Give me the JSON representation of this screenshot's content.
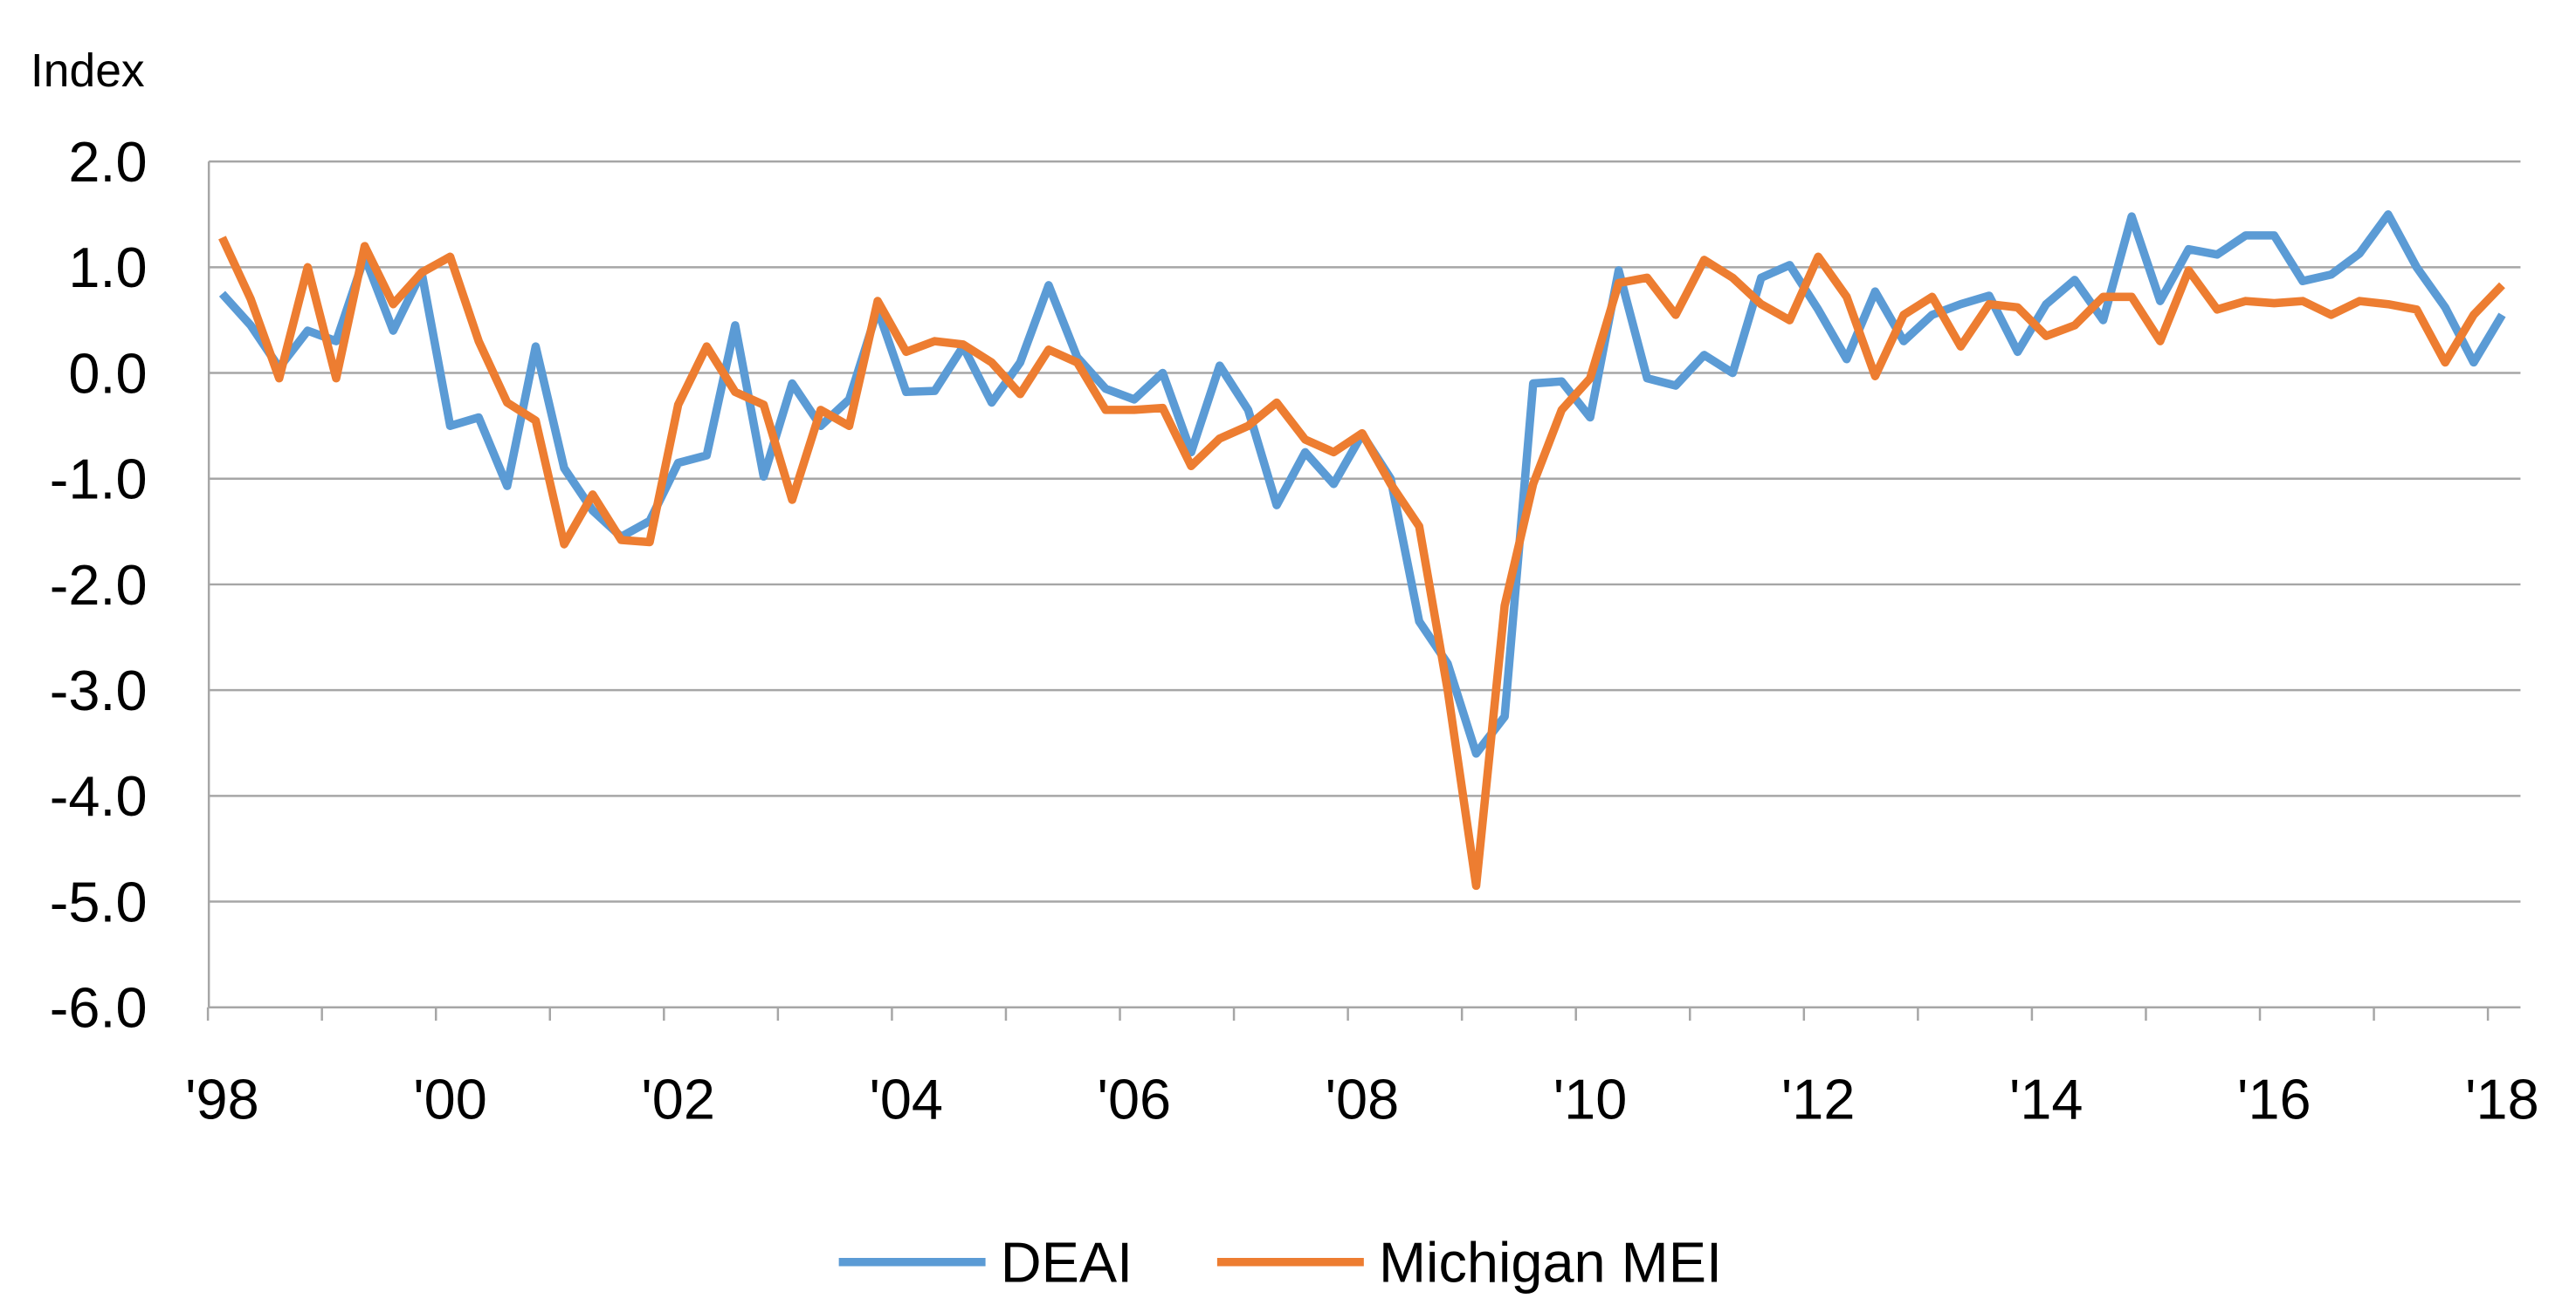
{
  "chart_data": {
    "type": "line",
    "title": "",
    "ylabel": "Index",
    "xlabel": "",
    "ylim": [
      -6.0,
      2.0
    ],
    "yticks": [
      "2.0",
      "1.0",
      "0.0",
      "-1.0",
      "-2.0",
      "-3.0",
      "-4.0",
      "-5.0",
      "-6.0"
    ],
    "xticks": [
      "'98",
      "'00",
      "'02",
      "'04",
      "'06",
      "'08",
      "'10",
      "'12",
      "'14",
      "'16",
      "'18"
    ],
    "x_range": [
      "1998 Q1",
      "2018 Q1"
    ],
    "frequency": "quarterly",
    "grid": "horizontal",
    "legend_position": "bottom",
    "series": [
      {
        "name": "DEAI",
        "color": "#5B9BD5",
        "values": [
          0.75,
          0.45,
          0.05,
          0.4,
          0.3,
          1.1,
          0.4,
          0.95,
          -0.5,
          -0.42,
          -1.07,
          0.25,
          -0.9,
          -1.3,
          -1.55,
          -1.4,
          -0.85,
          -0.78,
          0.45,
          -0.98,
          -0.1,
          -0.5,
          -0.25,
          0.6,
          -0.18,
          -0.17,
          0.25,
          -0.28,
          0.1,
          0.83,
          0.15,
          -0.15,
          -0.25,
          0.0,
          -0.75,
          0.07,
          -0.35,
          -1.25,
          -0.75,
          -1.05,
          -0.58,
          -1.0,
          -2.35,
          -2.75,
          -3.6,
          -3.25,
          -0.1,
          -0.08,
          -0.42,
          0.97,
          -0.05,
          -0.12,
          0.17,
          0.0,
          0.9,
          1.02,
          0.6,
          0.13,
          0.77,
          0.3,
          0.55,
          0.65,
          0.73,
          0.2,
          0.65,
          0.88,
          0.5,
          1.48,
          0.68,
          1.17,
          1.12,
          1.3,
          1.3,
          0.87,
          0.93,
          1.13,
          1.5,
          1.0,
          0.62,
          0.1,
          0.55
        ]
      },
      {
        "name": "Michigan MEI",
        "color": "#ED7D31",
        "values": [
          1.28,
          0.7,
          -0.05,
          1.0,
          -0.05,
          1.2,
          0.65,
          0.95,
          1.1,
          0.3,
          -0.28,
          -0.45,
          -1.62,
          -1.15,
          -1.58,
          -1.6,
          -0.3,
          0.25,
          -0.18,
          -0.3,
          -1.2,
          -0.35,
          -0.5,
          0.68,
          0.2,
          0.3,
          0.27,
          0.1,
          -0.2,
          0.22,
          0.1,
          -0.35,
          -0.35,
          -0.33,
          -0.88,
          -0.62,
          -0.5,
          -0.28,
          -0.63,
          -0.75,
          -0.57,
          -1.05,
          -1.45,
          -3.0,
          -4.85,
          -2.2,
          -1.05,
          -0.35,
          -0.05,
          0.85,
          0.9,
          0.55,
          1.07,
          0.9,
          0.65,
          0.5,
          1.1,
          0.72,
          -0.03,
          0.55,
          0.72,
          0.25,
          0.65,
          0.62,
          0.35,
          0.45,
          0.72,
          0.72,
          0.3,
          0.97,
          0.6,
          0.68,
          0.66,
          0.68,
          0.55,
          0.68,
          0.65,
          0.6,
          0.1,
          0.55,
          0.83
        ]
      }
    ]
  }
}
